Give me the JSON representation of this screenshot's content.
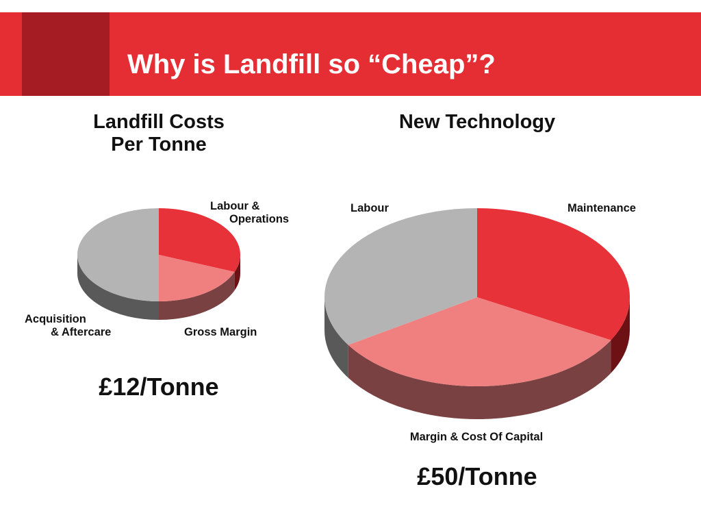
{
  "slide": {
    "title": "Why is Landfill so “Cheap”?"
  },
  "colors": {
    "banner": "#e52d34",
    "banner_accent": "#a51c22",
    "red": "#e8323a",
    "red_side": "#6d1114",
    "pink": "#f08080",
    "pink_side": "#7a4143",
    "gray": "#b4b4b4",
    "gray_side": "#595959"
  },
  "chart_data": [
    {
      "type": "pie",
      "title": [
        "Landfill Costs",
        "Per Tonne"
      ],
      "slices": [
        {
          "label": [
            "Labour &",
            "Operations"
          ],
          "value": 31,
          "color": "red"
        },
        {
          "label": [
            "Gross Margin"
          ],
          "value": 19,
          "color": "pink"
        },
        {
          "label": [
            "Acquisition",
            "& Aftercare"
          ],
          "value": 50,
          "color": "gray"
        }
      ],
      "total": "£12/Tonne"
    },
    {
      "type": "pie",
      "title": [
        "New Technology"
      ],
      "slices": [
        {
          "label": [
            "Maintenance"
          ],
          "value": 33,
          "color": "red"
        },
        {
          "label": [
            "Margin & Cost Of Capital"
          ],
          "value": 33,
          "color": "pink"
        },
        {
          "label": [
            "Labour"
          ],
          "value": 34,
          "color": "gray"
        }
      ],
      "total": "£50/Tonne"
    }
  ]
}
